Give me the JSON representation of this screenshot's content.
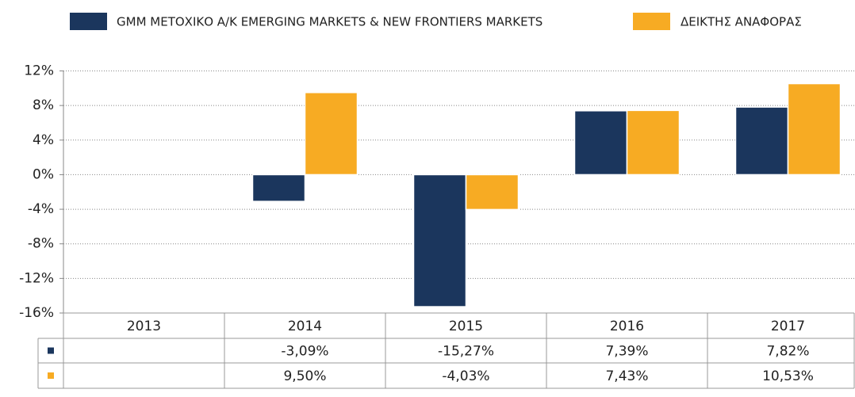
{
  "chart_data": {
    "type": "bar",
    "categories": [
      "2013",
      "2014",
      "2015",
      "2016",
      "2017"
    ],
    "series": [
      {
        "name": "GMM ΜΕΤΟΧΙΚΟ Α/Κ EMERGING MARKETS & NEW FRONTIERS MARKETS",
        "color": "#1b365d",
        "values": [
          null,
          -3.09,
          -15.27,
          7.39,
          7.82
        ],
        "value_labels": [
          null,
          "-3,09%",
          "-15,27%",
          "7,39%",
          "7,82%"
        ]
      },
      {
        "name": "ΔΕΙΚΤΗΣ ΑΝΑΦΟΡΑΣ",
        "color": "#f7ab23",
        "values": [
          null,
          9.5,
          -4.03,
          7.43,
          10.53
        ],
        "value_labels": [
          null,
          "9,50%",
          "-4,03%",
          "7,43%",
          "10,53%"
        ]
      }
    ],
    "ylim": [
      -16,
      12
    ],
    "yticks": [
      {
        "value": -16,
        "label": "-16%"
      },
      {
        "value": -12,
        "label": "-12%"
      },
      {
        "value": -8,
        "label": "-8%"
      },
      {
        "value": -4,
        "label": "-4%"
      },
      {
        "value": 0,
        "label": "0%"
      },
      {
        "value": 4,
        "label": "4%"
      },
      {
        "value": 8,
        "label": "8%"
      },
      {
        "value": 12,
        "label": "12%"
      }
    ],
    "grid": true,
    "legend": "top"
  }
}
